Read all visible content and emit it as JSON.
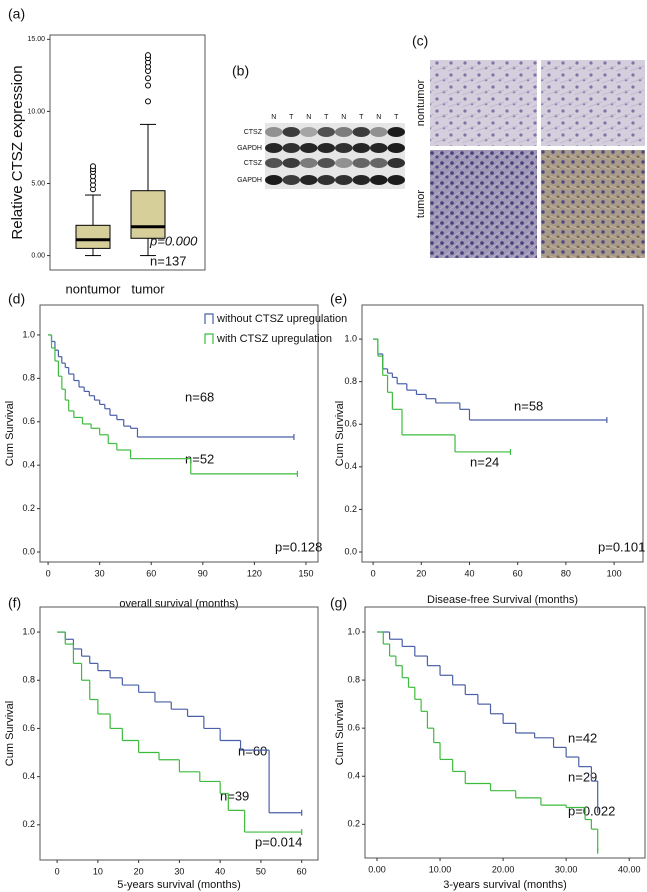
{
  "chart_data": [
    {
      "type": "box",
      "label": "(a)",
      "y_label": "Relative CTSZ expression",
      "categories": [
        "nontumor",
        "tumor"
      ],
      "boxes": [
        {
          "min": 0,
          "q1": 0.5,
          "median": 1.1,
          "q3": 2.1,
          "max": 4.2,
          "outliers": [
            4.6,
            4.9,
            5.2,
            5.5,
            5.8,
            6.0,
            6.2
          ]
        },
        {
          "min": 0,
          "q1": 1.2,
          "median": 2.0,
          "q3": 4.5,
          "max": 9.1,
          "outliers": [
            10.7,
            11.8,
            12.3,
            12.8,
            13.1,
            13.4,
            13.7,
            13.9
          ]
        }
      ],
      "color": "#d6cf9a",
      "ylim": [
        -1,
        15.3
      ],
      "yticks": [
        {
          "value": 0,
          "label": "0.00"
        },
        {
          "value": 5,
          "label": "5.00"
        },
        {
          "value": 10,
          "label": "10.00"
        },
        {
          "value": 15,
          "label": "15.00"
        }
      ],
      "annotations": [
        "p=0.000",
        "n=137"
      ]
    },
    {
      "type": "km",
      "label": "(d)",
      "x_label": "overall survival (months)",
      "y_label": "Cum Survival",
      "xlim": [
        -4.7,
        157
      ],
      "ylim": [
        -0.046,
        1.138
      ],
      "xticks": [
        0,
        30,
        60,
        90,
        120,
        150
      ],
      "yticks": [
        {
          "value": 0,
          "label": "0.0"
        },
        {
          "value": 0.2,
          "label": "0.2"
        },
        {
          "value": 0.4,
          "label": "0.4"
        },
        {
          "value": 0.6,
          "label": "0.6"
        },
        {
          "value": 0.8,
          "label": "0.8"
        },
        {
          "value": 1,
          "label": "1.0"
        }
      ],
      "legend": "top-right",
      "series": [
        {
          "name": "without CTSZ upregulation",
          "color": "#4a5fa8",
          "x": [
            0,
            2,
            4,
            6,
            8,
            10,
            12,
            15,
            18,
            21,
            24,
            27,
            30,
            33,
            36,
            40,
            44,
            48,
            52,
            143
          ],
          "values": [
            1,
            0.97,
            0.93,
            0.9,
            0.87,
            0.85,
            0.82,
            0.79,
            0.76,
            0.74,
            0.72,
            0.7,
            0.68,
            0.66,
            0.63,
            0.61,
            0.58,
            0.57,
            0.53,
            0.53
          ]
        },
        {
          "name": "with CTSZ upregulation",
          "color": "#3dbb3d",
          "x": [
            0,
            2,
            4,
            6,
            8,
            10,
            12,
            15,
            20,
            25,
            30,
            35,
            40,
            48,
            83,
            145
          ],
          "values": [
            1,
            0.94,
            0.88,
            0.81,
            0.75,
            0.7,
            0.65,
            0.62,
            0.59,
            0.57,
            0.54,
            0.5,
            0.47,
            0.43,
            0.36,
            0.36
          ]
        }
      ],
      "annotations": [
        "n=68",
        "n=52",
        "p=0.128"
      ]
    },
    {
      "type": "km",
      "label": "(e)",
      "x_label": "Disease-free Survival (months)",
      "y_label": "Cum Survival",
      "xlim": [
        -4.6,
        112
      ],
      "ylim": [
        -0.047,
        1.16
      ],
      "xticks": [
        0,
        20,
        40,
        60,
        80,
        100
      ],
      "yticks": [
        {
          "value": 0,
          "label": "0.0"
        },
        {
          "value": 0.2,
          "label": "0.2"
        },
        {
          "value": 0.4,
          "label": "0.4"
        },
        {
          "value": 0.6,
          "label": "0.6"
        },
        {
          "value": 0.8,
          "label": "0.8"
        },
        {
          "value": 1,
          "label": "1.0"
        }
      ],
      "series": [
        {
          "color": "#4a5fa8",
          "x": [
            0,
            2,
            4,
            6,
            8,
            10,
            14,
            18,
            22,
            26,
            36,
            40,
            97
          ],
          "values": [
            1,
            0.93,
            0.86,
            0.84,
            0.82,
            0.79,
            0.76,
            0.74,
            0.72,
            0.7,
            0.67,
            0.62,
            0.62
          ]
        },
        {
          "color": "#3dbb3d",
          "x": [
            0,
            2,
            4,
            6,
            8,
            12,
            34,
            57
          ],
          "values": [
            1,
            0.92,
            0.83,
            0.75,
            0.67,
            0.55,
            0.47,
            0.47
          ]
        }
      ],
      "annotations": [
        "n=58",
        "n=24",
        "p=0.101"
      ]
    },
    {
      "type": "km",
      "label": "(f)",
      "x_label": "5-years survival (months)",
      "y_label": "Cum Survival",
      "xlim": [
        -4.2,
        64
      ],
      "ylim": [
        0.054,
        1.104
      ],
      "xticks": [
        0,
        10,
        20,
        30,
        40,
        50,
        60
      ],
      "yticks": [
        {
          "value": 0.2,
          "label": "0.2"
        },
        {
          "value": 0.4,
          "label": "0.4"
        },
        {
          "value": 0.6,
          "label": "0.6"
        },
        {
          "value": 0.8,
          "label": "0.8"
        },
        {
          "value": 1,
          "label": "1.0"
        }
      ],
      "series": [
        {
          "color": "#4a5fa8",
          "x": [
            0,
            2,
            4,
            6,
            8,
            10,
            13,
            16,
            20,
            24,
            28,
            32,
            36,
            40,
            45,
            52,
            60
          ],
          "values": [
            1,
            0.97,
            0.93,
            0.9,
            0.87,
            0.84,
            0.81,
            0.78,
            0.75,
            0.71,
            0.68,
            0.65,
            0.6,
            0.55,
            0.51,
            0.25,
            0.25
          ]
        },
        {
          "color": "#3dbb3d",
          "x": [
            0,
            2,
            4,
            6,
            8,
            10,
            13,
            16,
            20,
            25,
            30,
            35,
            40,
            42,
            46,
            60
          ],
          "values": [
            1,
            0.95,
            0.87,
            0.8,
            0.72,
            0.66,
            0.6,
            0.55,
            0.5,
            0.47,
            0.42,
            0.38,
            0.33,
            0.26,
            0.17,
            0.17
          ]
        }
      ],
      "annotations": [
        "n=60",
        "n=39",
        "p=0.014"
      ]
    },
    {
      "type": "km",
      "label": "(g)",
      "x_label": "3-years survival (months)",
      "y_label": "Cum Survival",
      "xlim": [
        -1.9,
        42.5
      ],
      "ylim": [
        0.06,
        1.104
      ],
      "xticks": [
        {
          "value": 0,
          "label": "0.00"
        },
        {
          "value": 10,
          "label": "10.00"
        },
        {
          "value": 20,
          "label": "20.00"
        },
        {
          "value": 30,
          "label": "30.00"
        },
        {
          "value": 40,
          "label": "40.00"
        }
      ],
      "yticks": [
        {
          "value": 0.2,
          "label": "0.2"
        },
        {
          "value": 0.4,
          "label": "0.4"
        },
        {
          "value": 0.6,
          "label": "0.6"
        },
        {
          "value": 0.8,
          "label": "0.8"
        },
        {
          "value": 1,
          "label": "1.0"
        }
      ],
      "series": [
        {
          "color": "#4a5fa8",
          "x": [
            0,
            2,
            4,
            6,
            8,
            10,
            12,
            14,
            16,
            18,
            20,
            22,
            25,
            28,
            30,
            32,
            34,
            35
          ],
          "values": [
            1,
            0.97,
            0.94,
            0.9,
            0.86,
            0.82,
            0.78,
            0.74,
            0.7,
            0.66,
            0.62,
            0.58,
            0.56,
            0.52,
            0.48,
            0.44,
            0.38,
            0.26
          ]
        },
        {
          "color": "#3dbb3d",
          "x": [
            0,
            1,
            2,
            3,
            4,
            5,
            6,
            7,
            8,
            9,
            10,
            12,
            14,
            18,
            22,
            26,
            30,
            33,
            34,
            35
          ],
          "values": [
            1,
            0.95,
            0.9,
            0.86,
            0.81,
            0.77,
            0.72,
            0.67,
            0.6,
            0.54,
            0.47,
            0.42,
            0.37,
            0.34,
            0.31,
            0.28,
            0.27,
            0.22,
            0.18,
            0.09
          ]
        }
      ],
      "annotations": [
        "n=42",
        "n=29",
        "p=0.022"
      ]
    }
  ],
  "blot": {
    "label": "(b)",
    "lanes": [
      "N",
      "T",
      "N",
      "T",
      "N",
      "T",
      "N",
      "T"
    ],
    "rows": [
      "CTSZ",
      "GAPDH",
      "CTSZ",
      "GAPDH"
    ]
  },
  "ihc": {
    "label": "(c)",
    "rows": [
      "nontumor",
      "tumor"
    ]
  }
}
